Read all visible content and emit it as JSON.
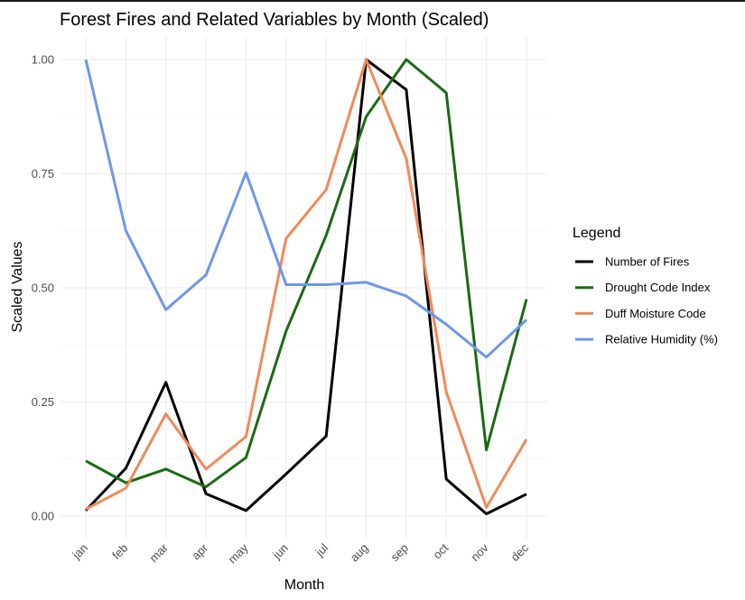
{
  "chart_data": {
    "type": "line",
    "title": "Forest Fires and Related Variables by Month (Scaled)",
    "xlabel": "Month",
    "ylabel": "Scaled Values",
    "categories": [
      "jan",
      "feb",
      "mar",
      "apr",
      "may",
      "jun",
      "jul",
      "aug",
      "sep",
      "oct",
      "nov",
      "dec"
    ],
    "ylim": [
      -0.04,
      1.04
    ],
    "yticks": [
      0,
      0.25,
      0.5,
      0.75,
      1
    ],
    "ytick_labels": [
      "0.00",
      "0.25",
      "0.50",
      "0.75",
      "1.00"
    ],
    "grid": true,
    "legend": {
      "title": "Legend",
      "position": "right"
    },
    "series": [
      {
        "name": "Number of Fires",
        "color": "#000000",
        "values": [
          0.012,
          0.105,
          0.293,
          0.049,
          0.012,
          0.092,
          0.175,
          1.0,
          0.934,
          0.081,
          0.005,
          0.048
        ]
      },
      {
        "name": "Drought Code Index",
        "color": "#1a6b12",
        "values": [
          0.121,
          0.073,
          0.103,
          0.064,
          0.128,
          0.405,
          0.615,
          0.875,
          1.0,
          0.927,
          0.145,
          0.475
        ]
      },
      {
        "name": "Duff Moisture Code",
        "color": "#f08a5a",
        "values": [
          0.015,
          0.061,
          0.224,
          0.103,
          0.174,
          0.608,
          0.715,
          1.0,
          0.783,
          0.272,
          0.019,
          0.168
        ]
      },
      {
        "name": "Relative Humidity (%)",
        "color": "#6f97e8",
        "values": [
          1.0,
          0.625,
          0.452,
          0.528,
          0.752,
          0.507,
          0.507,
          0.512,
          0.482,
          0.42,
          0.348,
          0.43
        ]
      }
    ]
  }
}
